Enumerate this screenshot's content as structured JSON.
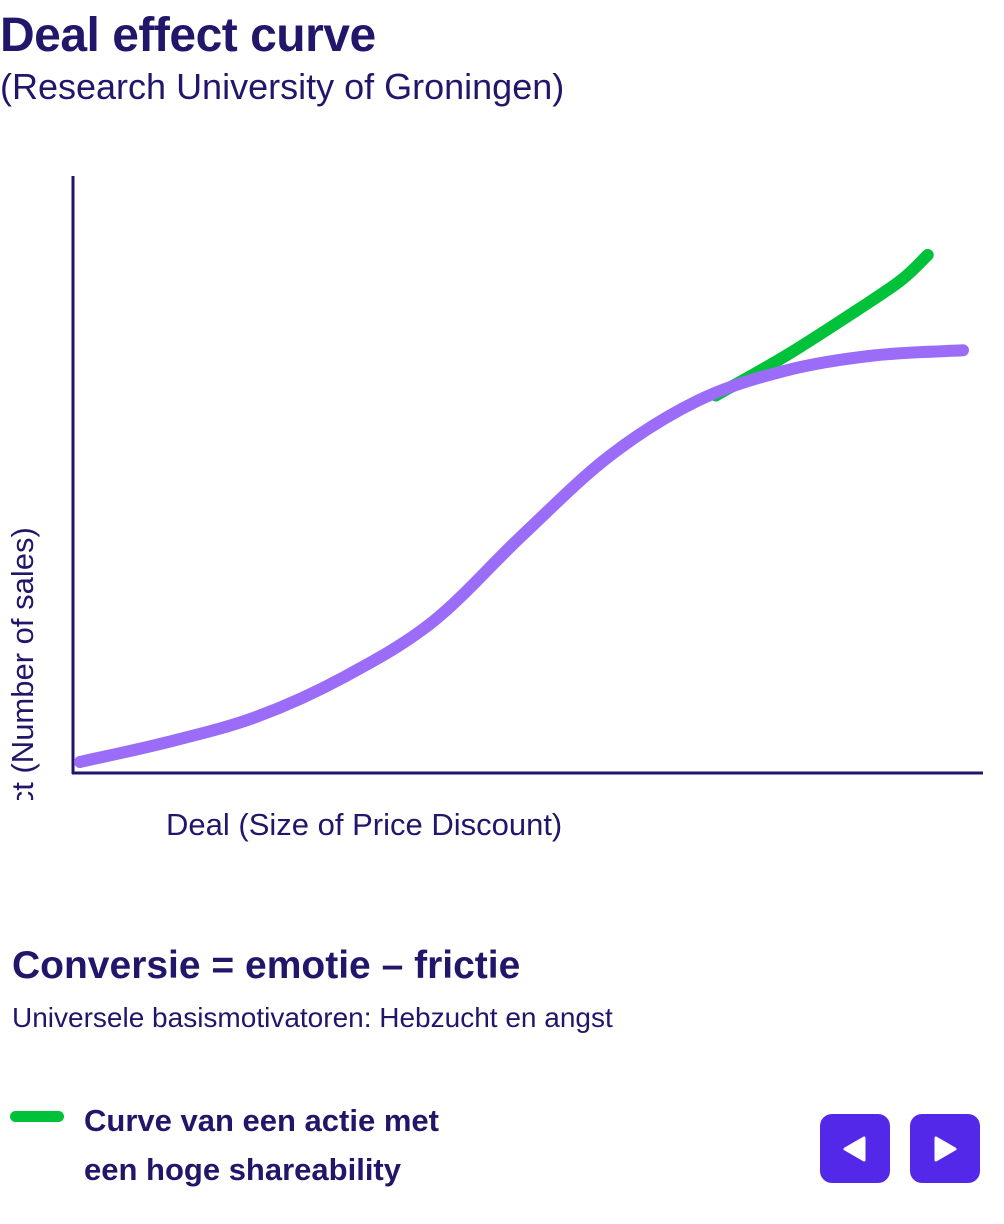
{
  "header": {
    "title": "Deal effect curve",
    "subtitle": "(Research University of Groningen)"
  },
  "chart_data": {
    "type": "line",
    "title": "Deal effect curve",
    "subtitle": "(Research University of Groningen)",
    "xlabel": "Deal (Size of Price Discount)",
    "ylabel": "Effect (Number of sales)",
    "xlim": [
      0,
      100
    ],
    "ylim": [
      0,
      100
    ],
    "grid": false,
    "legend_position": "bottom-left",
    "series": [
      {
        "key": "standard",
        "color": "#9b6cf7",
        "x": [
          0,
          10,
          20,
          30,
          40,
          50,
          60,
          70,
          80,
          90,
          100
        ],
        "y": [
          1,
          5,
          10,
          18,
          29,
          46,
          62,
          73,
          79,
          82,
          83
        ]
      },
      {
        "name": "Curve van een actie met een hoge shareability",
        "color": "#00c23a",
        "x": [
          72,
          80,
          88,
          93,
          96
        ],
        "y": [
          74,
          82,
          91,
          97,
          102
        ]
      }
    ]
  },
  "formula": "Conversie = emotie – frictie",
  "motivators": "Universele basismotivatoren: Hebzucht en angst",
  "legend": {
    "line1": "Curve van een actie met",
    "line2": "een hoge shareability",
    "color": "#00c23a"
  },
  "nav": {
    "prev_icon": "triangle-left-icon",
    "next_icon": "triangle-right-icon",
    "color": "#5428e8"
  },
  "colors": {
    "text": "#22166b",
    "axis": "#22166b",
    "accent": "#5428e8"
  }
}
